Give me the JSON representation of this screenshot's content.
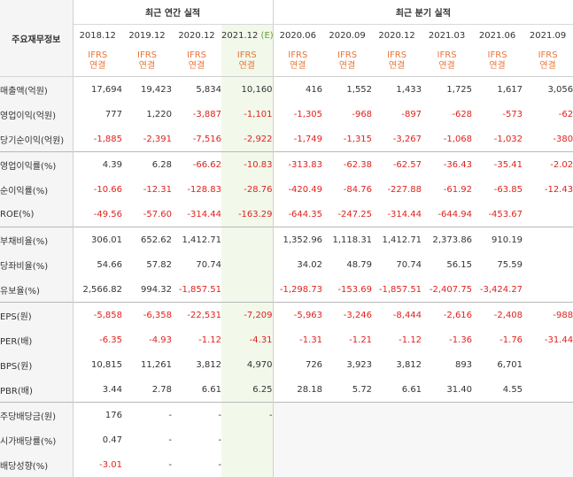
{
  "header": {
    "corner": "주요재무정보",
    "annual_label": "최근 연간 실적",
    "quarter_label": "최근 분기 실적",
    "periods": [
      "2018.12",
      "2019.12",
      "2020.12",
      "2021.12",
      "2020.06",
      "2020.09",
      "2020.12",
      "2021.03",
      "2021.06",
      "2021.09"
    ],
    "estimate_tag": "(E)",
    "ifrs_line1": "IFRS",
    "ifrs_line2": "연결"
  },
  "rows": [
    {
      "label": "매출액(억원)",
      "values": [
        "17,694",
        "19,423",
        "5,834",
        "10,160",
        "416",
        "1,552",
        "1,433",
        "1,725",
        "1,617",
        "3,056"
      ]
    },
    {
      "label": "영업이익(억원)",
      "values": [
        "777",
        "1,220",
        "-3,887",
        "-1,101",
        "-1,305",
        "-968",
        "-897",
        "-628",
        "-573",
        "-62"
      ]
    },
    {
      "label": "당기순이익(억원)",
      "values": [
        "-1,885",
        "-2,391",
        "-7,516",
        "-2,922",
        "-1,749",
        "-1,315",
        "-3,267",
        "-1,068",
        "-1,032",
        "-380"
      ]
    },
    {
      "label": "영업이익률(%)",
      "values": [
        "4.39",
        "6.28",
        "-66.62",
        "-10.83",
        "-313.83",
        "-62.38",
        "-62.57",
        "-36.43",
        "-35.41",
        "-2.02"
      ]
    },
    {
      "label": "순이익률(%)",
      "values": [
        "-10.66",
        "-12.31",
        "-128.83",
        "-28.76",
        "-420.49",
        "-84.76",
        "-227.88",
        "-61.92",
        "-63.85",
        "-12.43"
      ]
    },
    {
      "label": "ROE(%)",
      "values": [
        "-49.56",
        "-57.60",
        "-314.44",
        "-163.29",
        "-644.35",
        "-247.25",
        "-314.44",
        "-644.94",
        "-453.67",
        ""
      ]
    },
    {
      "label": "부채비율(%)",
      "values": [
        "306.01",
        "652.62",
        "1,412.71",
        "",
        "1,352.96",
        "1,118.31",
        "1,412.71",
        "2,373.86",
        "910.19",
        ""
      ]
    },
    {
      "label": "당좌비율(%)",
      "values": [
        "54.66",
        "57.82",
        "70.74",
        "",
        "34.02",
        "48.79",
        "70.74",
        "56.15",
        "75.59",
        ""
      ]
    },
    {
      "label": "유보율(%)",
      "values": [
        "2,566.82",
        "994.32",
        "-1,857.51",
        "",
        "-1,298.73",
        "-153.69",
        "-1,857.51",
        "-2,407.75",
        "-3,424.27",
        ""
      ]
    },
    {
      "label": "EPS(원)",
      "values": [
        "-5,858",
        "-6,358",
        "-22,531",
        "-7,209",
        "-5,963",
        "-3,246",
        "-8,444",
        "-2,616",
        "-2,408",
        "-988"
      ]
    },
    {
      "label": "PER(배)",
      "values": [
        "-6.35",
        "-4.93",
        "-1.12",
        "-4.31",
        "-1.31",
        "-1.21",
        "-1.12",
        "-1.36",
        "-1.76",
        "-31.44"
      ]
    },
    {
      "label": "BPS(원)",
      "values": [
        "10,815",
        "11,261",
        "3,812",
        "4,970",
        "726",
        "3,923",
        "3,812",
        "893",
        "6,701",
        ""
      ]
    },
    {
      "label": "PBR(배)",
      "values": [
        "3.44",
        "2.78",
        "6.61",
        "6.25",
        "28.18",
        "5.72",
        "6.61",
        "31.40",
        "4.55",
        ""
      ]
    },
    {
      "label": "주당배당금(원)",
      "values": [
        "176",
        "-",
        "-",
        "-",
        "",
        "",
        "",
        "",
        "",
        ""
      ]
    },
    {
      "label": "시가배당률(%)",
      "values": [
        "0.47",
        "-",
        "-",
        "",
        "",
        "",
        "",
        "",
        "",
        ""
      ]
    },
    {
      "label": "배당성향(%)",
      "values": [
        "-3.01",
        "-",
        "-",
        "",
        "",
        "",
        "",
        "",
        "",
        ""
      ]
    }
  ],
  "colors": {
    "negative": "#e0221c",
    "ifrs": "#e8753a",
    "estimate_bg": "#f2f9eb",
    "estimate_tag": "#6c9a3a",
    "label_bg": "#f5f5f5"
  }
}
